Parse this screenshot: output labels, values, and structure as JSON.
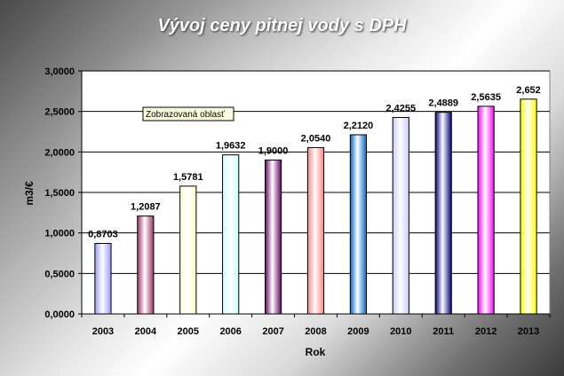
{
  "chart_data": {
    "type": "bar",
    "title": "Vývoj ceny pitnej vody s DPH",
    "xlabel": "Rok",
    "ylabel": "m3/€",
    "categories": [
      "2003",
      "2004",
      "2005",
      "2006",
      "2007",
      "2008",
      "2009",
      "2010",
      "2011",
      "2012",
      "2013"
    ],
    "values": [
      0.8703,
      1.2087,
      1.5781,
      1.9632,
      1.9,
      2.054,
      2.212,
      2.4255,
      2.4889,
      2.5635,
      2.652
    ],
    "value_labels": [
      "0,8703",
      "1,2087",
      "1,5781",
      "1,9632",
      "1,9000",
      "2,0540",
      "2,2120",
      "2,4255",
      "2,4889",
      "2,5635",
      "2,652"
    ],
    "ylim": [
      0,
      3
    ],
    "yticks": [
      0,
      0.5,
      1,
      1.5,
      2,
      2.5,
      3
    ],
    "ytick_labels": [
      "0,0000",
      "0,5000",
      "1,0000",
      "1,5000",
      "2,0000",
      "2,5000",
      "3,0000"
    ],
    "grid": true,
    "legend": "none",
    "bar_colors": [
      "#9999ff",
      "#993366",
      "#ffffcc",
      "#ccffff",
      "#660066",
      "#ff8080",
      "#0066cc",
      "#ccccff",
      "#000080",
      "#ff00ff",
      "#ffff00"
    ],
    "plot_area_color": "#ffffff",
    "tooltip": "Zobrazovaná oblasť"
  }
}
